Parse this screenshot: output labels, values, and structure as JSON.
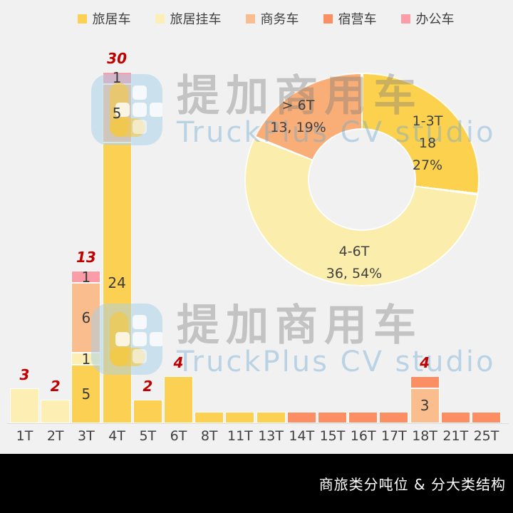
{
  "legend": {
    "items": [
      {
        "label": "旅居车",
        "color": "#FCD053"
      },
      {
        "label": "旅居挂车",
        "color": "#FDEFB3"
      },
      {
        "label": "商务车",
        "color": "#FABD8D"
      },
      {
        "label": "宿营车",
        "color": "#FB8F63"
      },
      {
        "label": "办公车",
        "color": "#FB9DA6"
      }
    ]
  },
  "chart_data": [
    {
      "type": "bar",
      "stacked": true,
      "categories": [
        "1T",
        "2T",
        "3T",
        "4T",
        "5T",
        "6T",
        "8T",
        "11T",
        "13T",
        "14T",
        "15T",
        "16T",
        "17T",
        "18T",
        "21T",
        "25T"
      ],
      "series": [
        {
          "name": "旅居车",
          "color": "#FCD053",
          "values": [
            0,
            0,
            5,
            24,
            2,
            4,
            1,
            1,
            1,
            0,
            0,
            0,
            0,
            0,
            0,
            0
          ]
        },
        {
          "name": "旅居挂车",
          "color": "#FDEFB3",
          "values": [
            3,
            2,
            1,
            0,
            0,
            0,
            0,
            0,
            0,
            0,
            0,
            0,
            0,
            0,
            0,
            0
          ]
        },
        {
          "name": "商务车",
          "color": "#FABD8D",
          "values": [
            0,
            0,
            6,
            5,
            0,
            0,
            0,
            0,
            0,
            0,
            0,
            0,
            0,
            3,
            0,
            0
          ]
        },
        {
          "name": "宿营车",
          "color": "#FB8F63",
          "values": [
            0,
            0,
            0,
            0,
            0,
            0,
            0,
            0,
            0,
            1,
            1,
            1,
            1,
            1,
            1,
            1
          ]
        },
        {
          "name": "办公车",
          "color": "#FB9DA6",
          "values": [
            0,
            0,
            1,
            1,
            0,
            0,
            0,
            0,
            0,
            0,
            0,
            0,
            0,
            0,
            0,
            0
          ]
        }
      ],
      "total_labels": {
        "1T": "3",
        "2T": "2",
        "3T": "13",
        "4T": "30",
        "5T": "2",
        "6T": "4",
        "18T": "4"
      },
      "segment_labels": [
        [
          "3T",
          "旅居车",
          "5"
        ],
        [
          "3T",
          "旅居挂车",
          "1"
        ],
        [
          "3T",
          "商务车",
          "6"
        ],
        [
          "3T",
          "办公车",
          "1"
        ],
        [
          "4T",
          "旅居车",
          "24"
        ],
        [
          "4T",
          "商务车",
          "5"
        ],
        [
          "4T",
          "办公车",
          "1"
        ],
        [
          "18T",
          "商务车",
          "3"
        ]
      ],
      "ylim": [
        0,
        30
      ],
      "grid": false,
      "legend_position": "top"
    },
    {
      "type": "pie",
      "donut": true,
      "start_angle_deg": 0,
      "direction": "clockwise",
      "slices": [
        {
          "label": "1-3T",
          "value": 18,
          "pct": "27%",
          "color": "#FBD14E",
          "text": [
            "1-3T",
            "18",
            "27%"
          ]
        },
        {
          "label": "4-6T",
          "value": 36,
          "pct": "54%",
          "color": "#FBEDAB",
          "text": [
            "4-6T",
            "36, 54%"
          ]
        },
        {
          "label": "> 6T",
          "value": 13,
          "pct": "19%",
          "color": "#FAAE77",
          "text": [
            "> 6T",
            "13, 19%"
          ]
        }
      ]
    }
  ],
  "watermark": {
    "brand": "提加商用车",
    "sub": "TruckPlus CV studio"
  },
  "footer": {
    "title": "商旅类分吨位 & 分大类结构"
  },
  "colors": {
    "background": "#F1F1F1",
    "footer_bg": "#000000",
    "footer_text": "#FFFFFF",
    "text": "#3F3F3F",
    "total_label": "#C00000"
  }
}
